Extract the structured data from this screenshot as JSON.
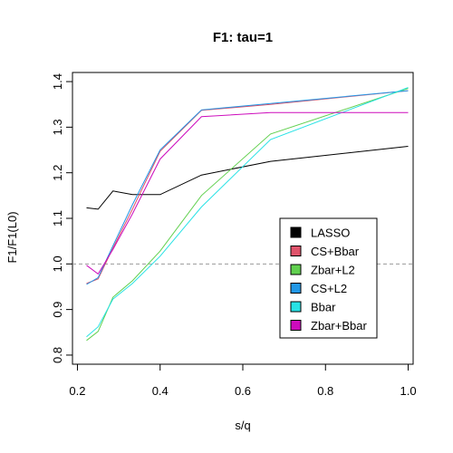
{
  "chart_data": {
    "type": "line",
    "title": "F1: tau=1",
    "xlabel": "s/q",
    "ylabel": "F1/F1(L0)",
    "xlim": [
      0.2,
      1.0
    ],
    "ylim": [
      0.8,
      1.4
    ],
    "xticks": [
      0.2,
      0.4,
      0.6,
      0.8,
      1.0
    ],
    "xtick_labels": [
      "0.2",
      "0.4",
      "0.6",
      "0.8",
      "1.0"
    ],
    "yticks": [
      0.8,
      0.9,
      1.0,
      1.1,
      1.2,
      1.3,
      1.4
    ],
    "ytick_labels": [
      "0.8",
      "0.9",
      "1.0",
      "1.1",
      "1.2",
      "1.3",
      "1.4"
    ],
    "reference_line": {
      "y": 1.0,
      "style": "dashed",
      "color": "#999999"
    },
    "legend_position": "lower-right",
    "grid": false,
    "x": [
      0.222,
      0.25,
      0.286,
      0.333,
      0.4,
      0.5,
      0.667,
      1.0
    ],
    "series": [
      {
        "name": "LASSO",
        "color": "#000000",
        "values": [
          1.123,
          1.12,
          1.16,
          1.152,
          1.152,
          1.195,
          1.225,
          1.258
        ]
      },
      {
        "name": "CS+Bbar",
        "color": "#df536b",
        "values": [
          0.957,
          0.967,
          1.035,
          1.12,
          1.247,
          1.337,
          1.35,
          1.38
        ]
      },
      {
        "name": "Zbar+L2",
        "color": "#61d04f",
        "values": [
          0.832,
          0.852,
          0.927,
          0.963,
          1.028,
          1.15,
          1.285,
          1.385
        ]
      },
      {
        "name": "CS+L2",
        "color": "#2297e6",
        "values": [
          0.955,
          0.97,
          1.04,
          1.13,
          1.25,
          1.338,
          1.352,
          1.38
        ]
      },
      {
        "name": "Bbar",
        "color": "#28e2e5",
        "values": [
          0.84,
          0.862,
          0.923,
          0.957,
          1.017,
          1.125,
          1.273,
          1.387
        ]
      },
      {
        "name": "Zbar+Bbar",
        "color": "#cd0bbc",
        "values": [
          0.997,
          0.978,
          1.032,
          1.11,
          1.23,
          1.323,
          1.332,
          1.332
        ]
      }
    ]
  }
}
